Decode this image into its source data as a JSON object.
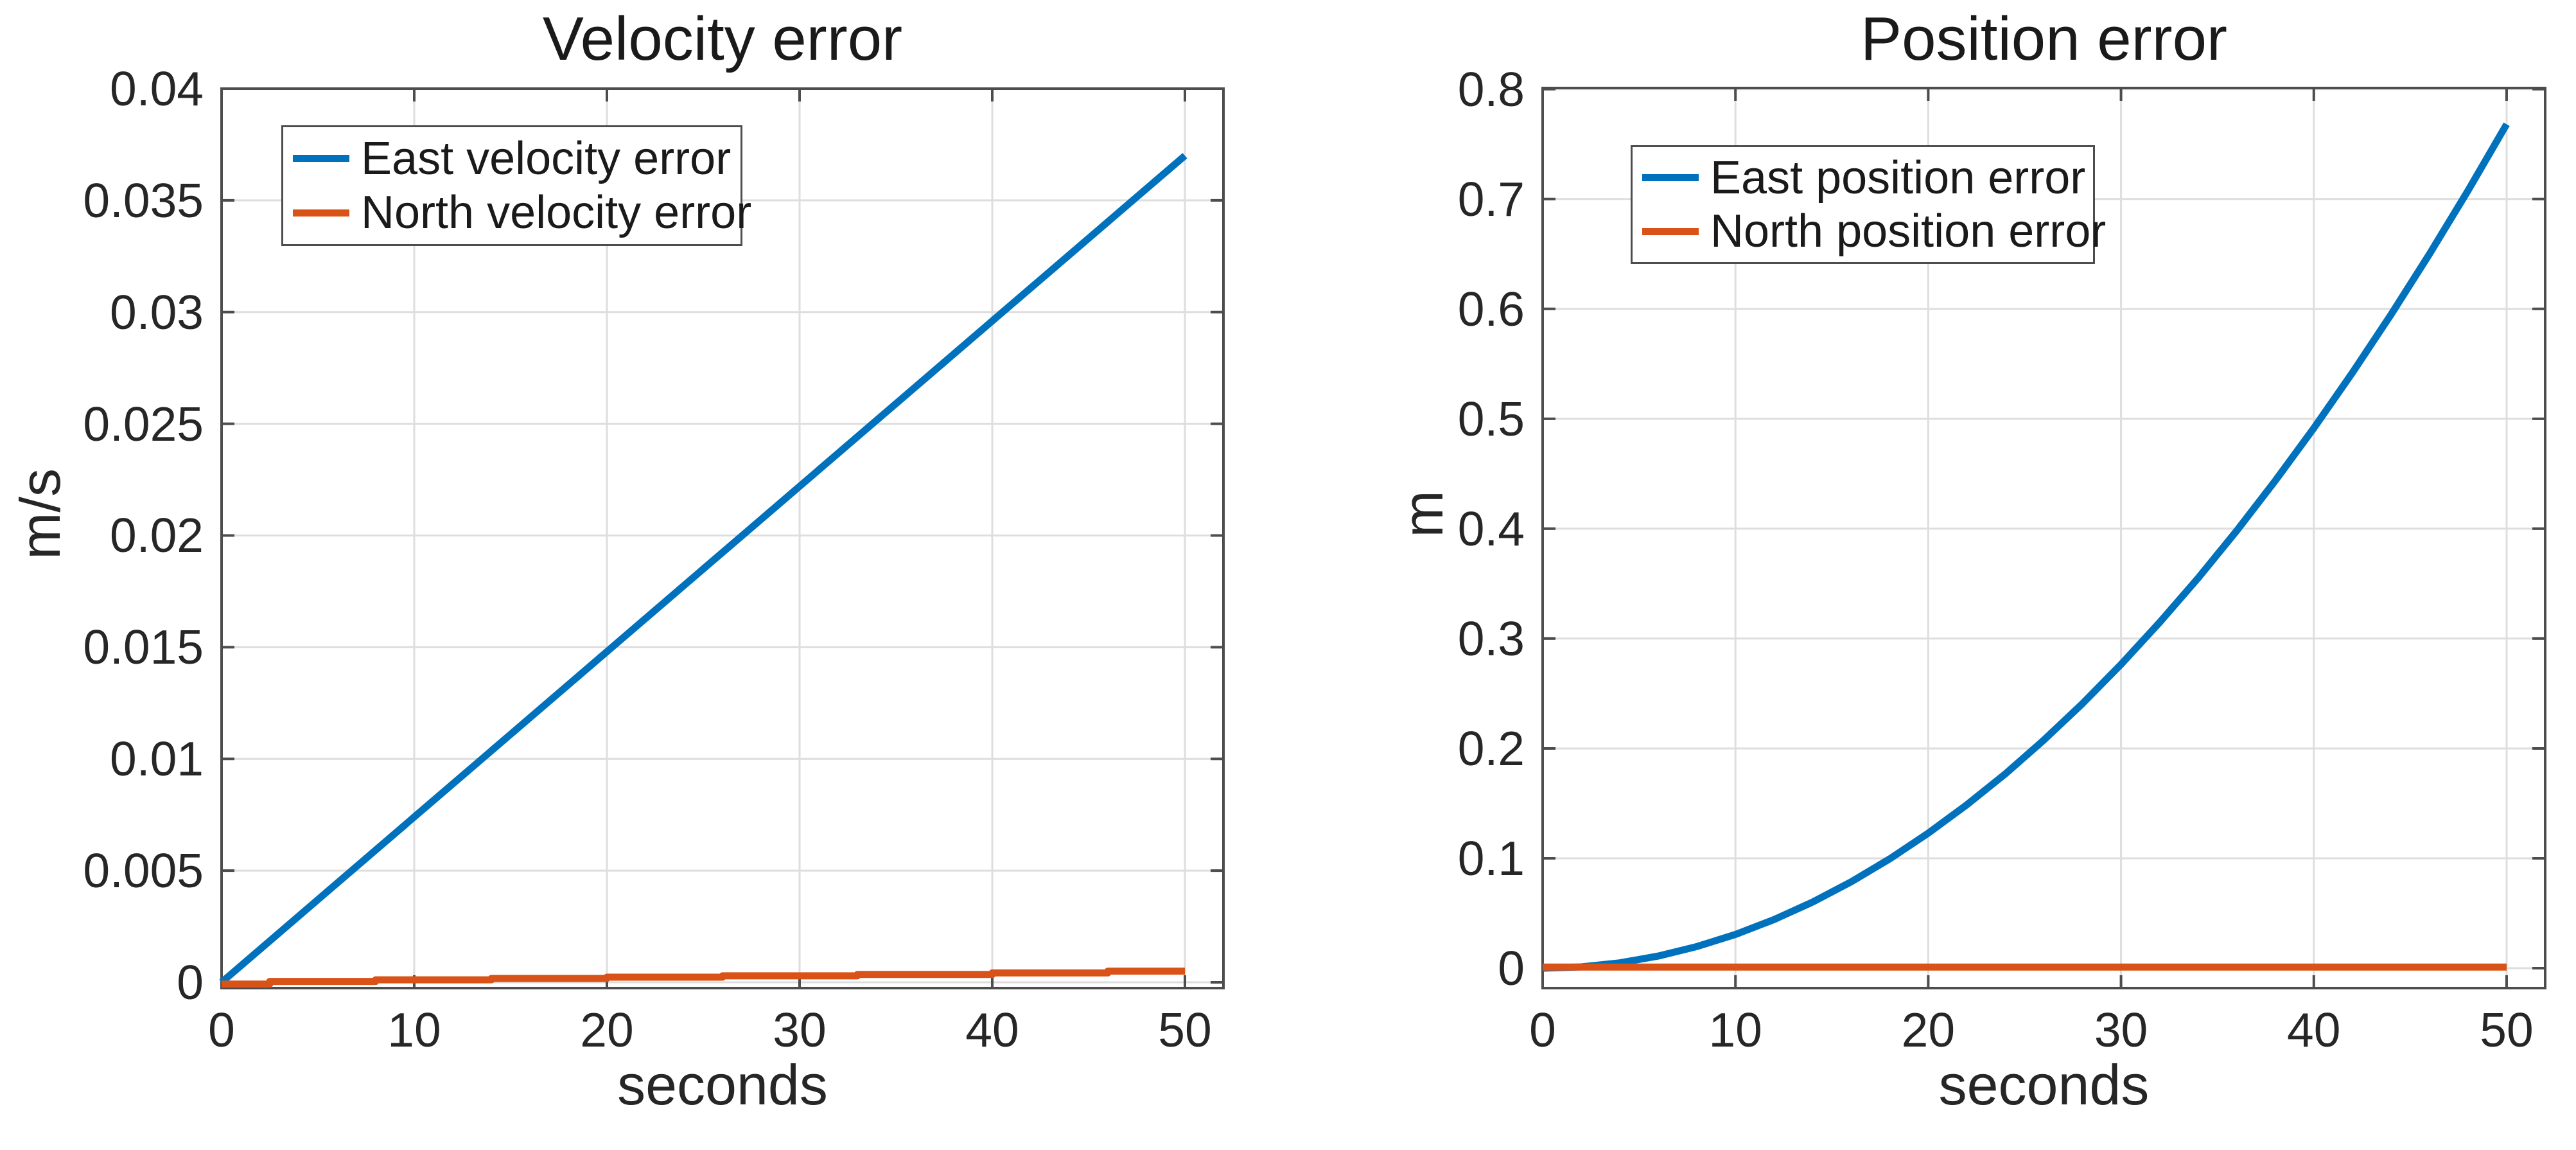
{
  "figure": {
    "background_color": "#ffffff",
    "accent_colors": {
      "matlab_blue": "#0072BD",
      "matlab_orange": "#D95319"
    },
    "axis_color": "#4d4d4d",
    "grid_color": "#dedede",
    "text_color": "#262626"
  },
  "chart_data": [
    {
      "type": "line",
      "title": "Velocity error",
      "xlabel": "seconds",
      "ylabel": "m/s",
      "xlim": [
        0,
        52
      ],
      "ylim": [
        -0.00026,
        0.04
      ],
      "xticks": [
        0,
        10,
        20,
        30,
        40,
        50
      ],
      "xtick_labels": [
        "0",
        "10",
        "20",
        "30",
        "40",
        "50"
      ],
      "yticks": [
        0,
        0.005,
        0.01,
        0.015,
        0.02,
        0.025,
        0.03,
        0.035,
        0.04
      ],
      "ytick_labels": [
        "0",
        "0.005",
        "0.01",
        "0.015",
        "0.02",
        "0.025",
        "0.03",
        "0.035",
        "0.04"
      ],
      "grid": true,
      "legend_position": "upper-left-inside",
      "series": [
        {
          "name": "East velocity error",
          "color": "#0072BD",
          "x": [
            0,
            5,
            10,
            15,
            20,
            25,
            30,
            35,
            40,
            45,
            50
          ],
          "y": [
            0,
            0.0037,
            0.0074,
            0.0111,
            0.0148,
            0.0185,
            0.0222,
            0.0259,
            0.0296,
            0.0333,
            0.037
          ]
        },
        {
          "name": "North velocity error",
          "color": "#D95319",
          "x": [
            0,
            2.5,
            2.5,
            8,
            8,
            14,
            14,
            20,
            20,
            26,
            26,
            33,
            33,
            40,
            40,
            46,
            46,
            50
          ],
          "y": [
            -8e-05,
            -8e-05,
            4e-05,
            4e-05,
            0.00011,
            0.00011,
            0.00017,
            0.00017,
            0.00023,
            0.00023,
            0.00029,
            0.00029,
            0.00035,
            0.00035,
            0.00042,
            0.00042,
            0.0005,
            0.0005
          ]
        }
      ]
    },
    {
      "type": "line",
      "title": "Position error",
      "xlabel": "seconds",
      "ylabel": "m",
      "xlim": [
        0,
        52
      ],
      "ylim": [
        -0.0181,
        0.801
      ],
      "xticks": [
        0,
        10,
        20,
        30,
        40,
        50
      ],
      "xtick_labels": [
        "0",
        "10",
        "20",
        "30",
        "40",
        "50"
      ],
      "yticks": [
        0,
        0.1,
        0.2,
        0.3,
        0.4,
        0.5,
        0.6,
        0.7,
        0.8
      ],
      "ytick_labels": [
        "0",
        "0.1",
        "0.2",
        "0.3",
        "0.4",
        "0.5",
        "0.6",
        "0.7",
        "0.8"
      ],
      "grid": true,
      "legend_position": "upper-left-inside",
      "series": [
        {
          "name": "East position error",
          "color": "#0072BD",
          "x": [
            0,
            2,
            4,
            6,
            8,
            10,
            12,
            14,
            16,
            18,
            20,
            22,
            24,
            26,
            28,
            30,
            32,
            34,
            36,
            38,
            40,
            42,
            44,
            46,
            48,
            50
          ],
          "y": [
            0,
            0.0012,
            0.0049,
            0.0111,
            0.0197,
            0.0307,
            0.0442,
            0.0602,
            0.0786,
            0.0995,
            0.1229,
            0.1487,
            0.1769,
            0.2077,
            0.2408,
            0.2765,
            0.3146,
            0.3551,
            0.3981,
            0.4436,
            0.4915,
            0.5419,
            0.5947,
            0.65,
            0.7077,
            0.768
          ]
        },
        {
          "name": "North position error",
          "color": "#D95319",
          "x": [
            0,
            50
          ],
          "y": [
            0.001,
            0.001
          ]
        }
      ]
    }
  ]
}
